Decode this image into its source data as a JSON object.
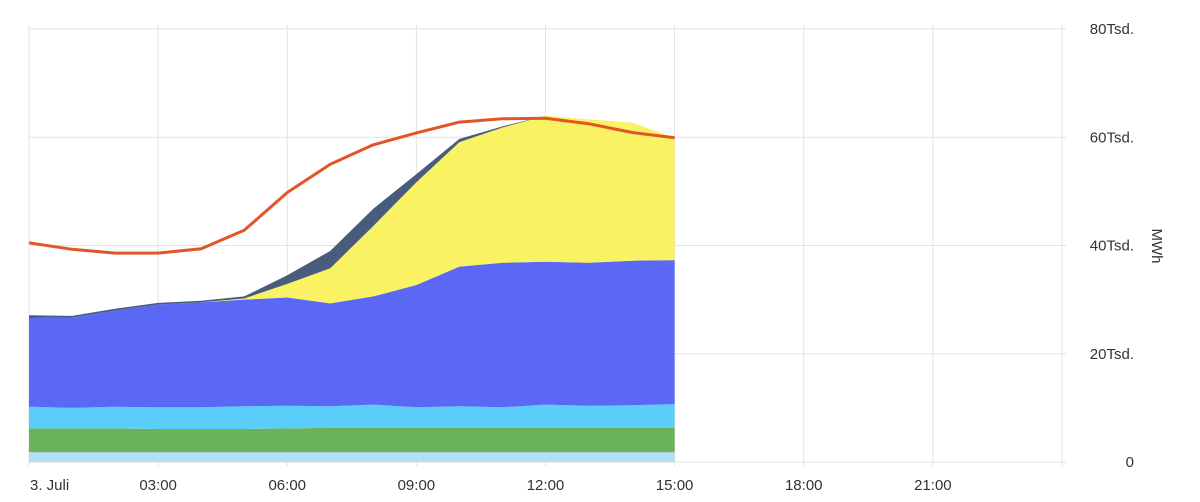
{
  "chart_data": {
    "type": "area",
    "stacked": true,
    "x": [
      "00:00",
      "01:00",
      "02:00",
      "03:00",
      "04:00",
      "05:00",
      "06:00",
      "07:00",
      "08:00",
      "09:00",
      "10:00",
      "11:00",
      "12:00",
      "13:00",
      "14:00",
      "15:00"
    ],
    "xticks": [
      {
        "label": "3. Juli",
        "hour": 0
      },
      {
        "label": "03:00",
        "hour": 3
      },
      {
        "label": "06:00",
        "hour": 6
      },
      {
        "label": "09:00",
        "hour": 9
      },
      {
        "label": "12:00",
        "hour": 12
      },
      {
        "label": "15:00",
        "hour": 15
      },
      {
        "label": "18:00",
        "hour": 18
      },
      {
        "label": "21:00",
        "hour": 21
      }
    ],
    "x_range_hours": [
      0,
      24
    ],
    "yticks": [
      {
        "label": "0",
        "value": 0
      },
      {
        "label": "20Tsd.",
        "value": 20000
      },
      {
        "label": "40Tsd.",
        "value": 40000
      },
      {
        "label": "60Tsd.",
        "value": 60000
      },
      {
        "label": "80Tsd.",
        "value": 80000
      }
    ],
    "ylim": [
      0,
      80000
    ],
    "ylabel": "MWh",
    "grid": true,
    "series": [
      {
        "color": "#b3e0f5",
        "values": [
          1800,
          1800,
          1800,
          1800,
          1800,
          1800,
          1800,
          1800,
          1800,
          1800,
          1800,
          1800,
          1800,
          1800,
          1800,
          1800
        ]
      },
      {
        "color": "#6ab259",
        "values": [
          4400,
          4400,
          4400,
          4300,
          4300,
          4300,
          4400,
          4500,
          4500,
          4500,
          4500,
          4500,
          4500,
          4500,
          4500,
          4500
        ]
      },
      {
        "color": "#5bcdfa",
        "values": [
          4000,
          3800,
          4000,
          4000,
          4000,
          4200,
          4200,
          4000,
          4300,
          3800,
          4000,
          3800,
          4300,
          4100,
          4200,
          4400
        ]
      },
      {
        "color": "#5b67f5",
        "values": [
          16400,
          16700,
          17800,
          19000,
          19400,
          19700,
          20000,
          19000,
          20000,
          22600,
          25800,
          26700,
          26400,
          26400,
          26700,
          26600
        ]
      },
      {
        "color": "#f9f263",
        "values": [
          0,
          0,
          0,
          0,
          0,
          200,
          2500,
          6500,
          13000,
          19000,
          23000,
          25000,
          27000,
          26500,
          25500,
          22600
        ]
      },
      {
        "color": "#495c7c",
        "values": [
          500,
          300,
          300,
          300,
          300,
          400,
          1600,
          3200,
          3200,
          1500,
          600,
          200,
          0,
          0,
          0,
          0
        ]
      }
    ],
    "line_series": {
      "color": "#e05628",
      "values": [
        40500,
        39300,
        38600,
        38600,
        39400,
        42800,
        49800,
        55000,
        58600,
        60800,
        62800,
        63400,
        63500,
        62500,
        60900,
        59900
      ]
    }
  }
}
